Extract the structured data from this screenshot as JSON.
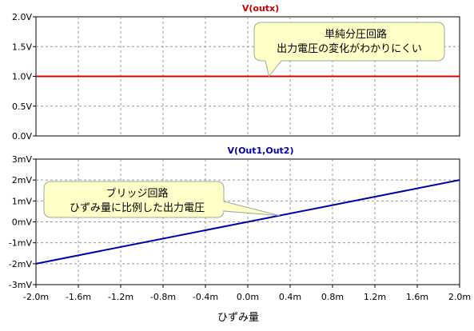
{
  "chart_data": [
    {
      "type": "line",
      "title": "V(outx)",
      "title_color": "#cc0000",
      "ylim": [
        0,
        2.0
      ],
      "yticks": [
        "0.0V",
        "0.5V",
        "1.0V",
        "1.5V",
        "2.0V"
      ],
      "ytick_values": [
        0,
        0.5,
        1.0,
        1.5,
        2.0
      ],
      "xlim": [
        -2.0,
        2.0
      ],
      "grid": true,
      "series": [
        {
          "color": "#dd0000",
          "x": [
            -2.0,
            2.0
          ],
          "y": [
            1.0,
            1.0
          ]
        }
      ],
      "annotation": {
        "lines": [
          "単純分圧回路",
          "出力電圧の変化がわかりにくい"
        ],
        "pointer_x": 0.2,
        "pointer_y": 1.0
      }
    },
    {
      "type": "line",
      "title": "V(Out1,Out2)",
      "title_color": "#0000aa",
      "ylim": [
        -3,
        3
      ],
      "yticks": [
        "-3mV",
        "-2mV",
        "-1mV",
        "0mV",
        "1mV",
        "2mV",
        "3mV"
      ],
      "ytick_values": [
        -3,
        -2,
        -1,
        0,
        1,
        2,
        3
      ],
      "xlim": [
        -2.0,
        2.0
      ],
      "xticks": [
        "-2.0m",
        "-1.6m",
        "-1.2m",
        "-0.8m",
        "-0.4m",
        "0.0m",
        "0.4m",
        "0.8m",
        "1.2m",
        "1.6m",
        "2.0m"
      ],
      "xtick_values": [
        -2.0,
        -1.6,
        -1.2,
        -0.8,
        -0.4,
        0.0,
        0.4,
        0.8,
        1.2,
        1.6,
        2.0
      ],
      "xlabel": "ひずみ量",
      "grid": true,
      "series": [
        {
          "color": "#0000aa",
          "x": [
            -2.0,
            2.0
          ],
          "y": [
            -2.0,
            2.0
          ]
        }
      ],
      "annotation": {
        "lines": [
          "ブリッジ回路",
          "ひずみ量に比例した出力電圧"
        ],
        "pointer_x": 0.3,
        "pointer_y": 0.3
      }
    }
  ],
  "colors": {
    "grid": "#999999",
    "frame": "#000000",
    "bubble_fill": "#ffffc8",
    "bubble_stroke": "#9aaa9a"
  }
}
